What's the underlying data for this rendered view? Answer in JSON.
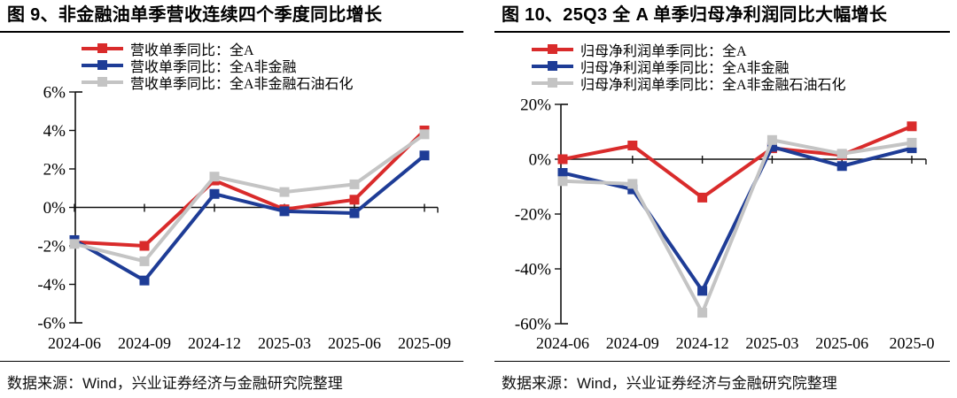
{
  "page": {
    "background": "#ffffff",
    "axis_color": "#111111",
    "divider_color": "#000000"
  },
  "chart_data": [
    {
      "type": "line",
      "title": "图 9、非金融油单季营收连续四个季度同比增长",
      "categories": [
        "2024-06",
        "2024-09",
        "2024-12",
        "2025-03",
        "2025-06",
        "2025-09"
      ],
      "series": [
        {
          "name": "营收单季同比：全A",
          "color": "#d92b2b",
          "values": [
            -1.8,
            -2.0,
            1.4,
            -0.1,
            0.4,
            4.0
          ]
        },
        {
          "name": "营收单季同比：全A非金融",
          "color": "#1e3c96",
          "values": [
            -1.7,
            -3.8,
            0.7,
            -0.2,
            -0.3,
            2.7
          ]
        },
        {
          "name": "营收单季同比：全A非金融石油石化",
          "color": "#c4c4c4",
          "values": [
            -1.9,
            -2.8,
            1.6,
            0.8,
            1.2,
            3.8
          ]
        }
      ],
      "ylim": [
        -6,
        6
      ],
      "yticks": [
        6,
        4,
        2,
        0,
        -2,
        -4,
        -6
      ],
      "ytick_labels": [
        "6%",
        "4%",
        "2%",
        "0%",
        "-2%",
        "-4%",
        "-6%"
      ],
      "legend_position": "top",
      "grid": false,
      "marker": "square",
      "source": "数据来源：Wind，兴业证券经济与金融研究院整理"
    },
    {
      "type": "line",
      "title": "图 10、25Q3 全 A 单季归母净利润同比大幅增长",
      "categories": [
        "2024-06",
        "2024-09",
        "2024-12",
        "2025-03",
        "2025-06",
        "2025-0"
      ],
      "series": [
        {
          "name": "归母净利润单季同比：全A",
          "color": "#d92b2b",
          "values": [
            0,
            5,
            -14,
            4,
            1.5,
            12
          ]
        },
        {
          "name": "归母净利润单季同比：全A非金融",
          "color": "#1e3c96",
          "values": [
            -5,
            -11,
            -48,
            4.5,
            -2.5,
            4
          ]
        },
        {
          "name": "归母净利润单季同比：全A非金融石油石化",
          "color": "#c4c4c4",
          "values": [
            -8,
            -9,
            -56,
            7,
            2,
            6
          ]
        }
      ],
      "ylim": [
        -60,
        20
      ],
      "yticks": [
        20,
        0,
        -20,
        -40,
        -60
      ],
      "ytick_labels": [
        "20%",
        "0%",
        "-20%",
        "-40%",
        "-60%"
      ],
      "legend_position": "top",
      "grid": false,
      "marker": "square",
      "source": "数据来源：Wind，兴业证券经济与金融研究院整理"
    }
  ]
}
